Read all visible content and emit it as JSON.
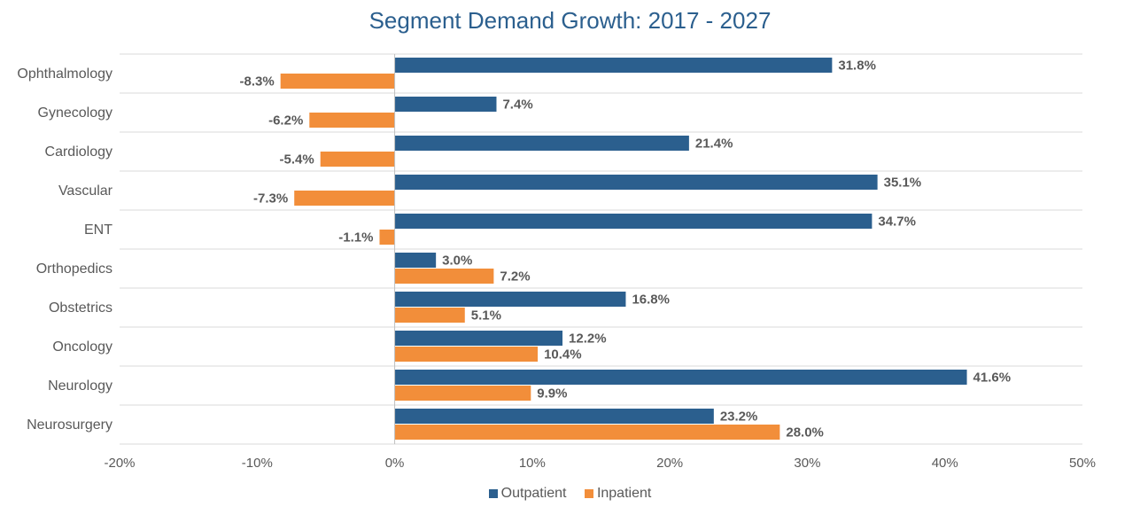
{
  "chart_data": {
    "type": "bar",
    "orientation": "horizontal",
    "title": "Segment Demand Growth: 2017 - 2027",
    "categories": [
      "Ophthalmology",
      "Gynecology",
      "Cardiology",
      "Vascular",
      "ENT",
      "Orthopedics",
      "Obstetrics",
      "Oncology",
      "Neurology",
      "Neurosurgery"
    ],
    "series": [
      {
        "name": "Outpatient",
        "color": "#2B5F8E",
        "values": [
          31.8,
          7.4,
          21.4,
          35.1,
          34.7,
          3.0,
          16.8,
          12.2,
          41.6,
          23.2
        ],
        "labels": [
          "31.8%",
          "7.4%",
          "21.4%",
          "35.1%",
          "34.7%",
          "3.0%",
          "16.8%",
          "12.2%",
          "41.6%",
          "23.2%"
        ]
      },
      {
        "name": "Inpatient",
        "color": "#F28E3A",
        "values": [
          -8.3,
          -6.2,
          -5.4,
          -7.3,
          -1.1,
          7.2,
          5.1,
          10.4,
          9.9,
          28.0
        ],
        "labels": [
          "-8.3%",
          "-6.2%",
          "-5.4%",
          "-7.3%",
          "-1.1%",
          "7.2%",
          "5.1%",
          "10.4%",
          "9.9%",
          "28.0%"
        ]
      }
    ],
    "xlim": [
      -20,
      50
    ],
    "xticks": [
      "-20%",
      "-10%",
      "0%",
      "10%",
      "20%",
      "30%",
      "40%",
      "50%"
    ],
    "xlabel": "",
    "ylabel": "",
    "grid": "horizontal",
    "legend": "bottom-center"
  }
}
